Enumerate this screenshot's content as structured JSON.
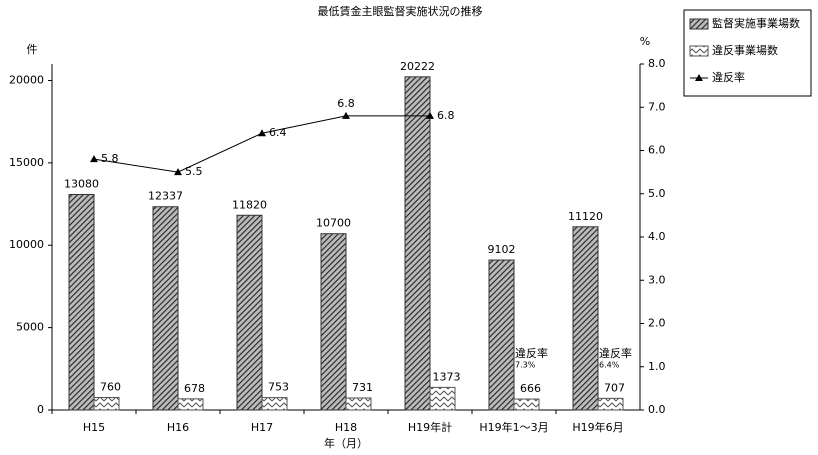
{
  "chart_data": {
    "type": "bar",
    "title": "最低賃金主眼監督実施状況の推移",
    "y_unit": "件",
    "y2_unit": "%",
    "xlabel": "年（月）",
    "categories": [
      "H15",
      "H16",
      "H17",
      "H18",
      "H19年計",
      "H19年1～3月",
      "H19年6月"
    ],
    "series": [
      {
        "name": "監督実施事業場数",
        "type": "bar",
        "color": "#333333",
        "values": [
          13080,
          12337,
          11820,
          10700,
          20222,
          9102,
          11120
        ]
      },
      {
        "name": "違反事業場数",
        "type": "bar",
        "color": "#555555",
        "values": [
          760,
          678,
          753,
          731,
          1373,
          666,
          707
        ]
      },
      {
        "name": "違反率",
        "type": "line",
        "axis": "y2",
        "color": "#000000",
        "values": [
          5.8,
          5.5,
          6.4,
          6.8,
          6.8,
          null,
          null
        ]
      }
    ],
    "ylim": [
      0,
      21000
    ],
    "yticks": [
      0,
      5000,
      10000,
      15000,
      20000
    ],
    "y2lim": [
      0,
      8
    ],
    "y2ticks": [
      {
        "value": 0,
        "label": "0.0"
      },
      {
        "value": 1,
        "label": "1.0"
      },
      {
        "value": 2,
        "label": "2.0"
      },
      {
        "value": 3,
        "label": "3.0"
      },
      {
        "value": 4,
        "label": "4.0"
      },
      {
        "value": 5,
        "label": "5.0"
      },
      {
        "value": 6,
        "label": "6.0"
      },
      {
        "value": 7,
        "label": "7.0"
      },
      {
        "value": 8,
        "label": "8.0"
      }
    ],
    "annotations": [
      [
        "違反率",
        "7.3%"
      ],
      [
        "違反率",
        "6.4%"
      ]
    ],
    "legend": "top-right"
  }
}
